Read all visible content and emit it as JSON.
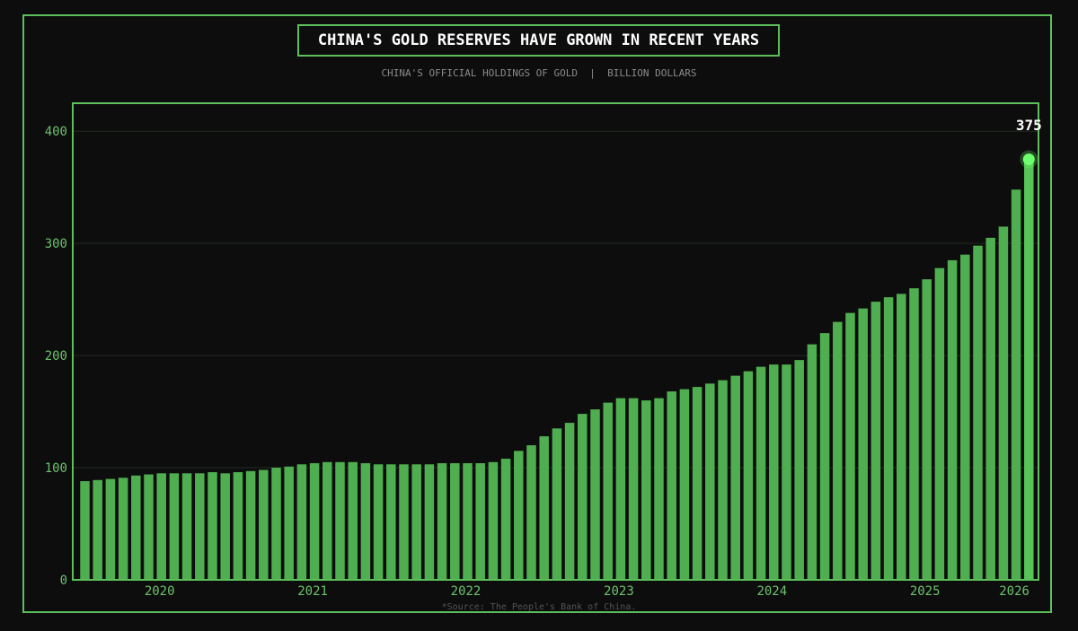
{
  "title": "CHINA'S GOLD RESERVES HAVE GROWN IN RECENT YEARS",
  "subtitle": "CHINA'S OFFICIAL HOLDINGS OF GOLD  |  BILLION DOLLARS",
  "source": "*Source: The People's Bank of China.",
  "colors": {
    "background": "#0d0d0d",
    "accent": "#5cbf5c",
    "bar": "#4fae4f",
    "highlight": "#6dff6d",
    "grid": "#1f2a1f",
    "tick_label": "#6cc26c"
  },
  "chart_data": {
    "type": "bar",
    "title": "CHINA'S GOLD RESERVES HAVE GROWN IN RECENT YEARS",
    "subtitle": "CHINA'S OFFICIAL HOLDINGS OF GOLD  |  BILLION DOLLARS",
    "ylim": [
      0,
      425
    ],
    "yticks": [
      0,
      100,
      200,
      300,
      400
    ],
    "grid": true,
    "x_tick_labels": [
      "2020",
      "2021",
      "2022",
      "2023",
      "2024",
      "2025",
      "2026"
    ],
    "x_tick_bar_index": [
      6,
      18,
      30,
      42,
      54,
      66,
      73
    ],
    "values": [
      88,
      89,
      90,
      91,
      93,
      94,
      95,
      95,
      95,
      95,
      96,
      95,
      96,
      97,
      98,
      100,
      101,
      103,
      104,
      105,
      105,
      105,
      104,
      103,
      103,
      103,
      103,
      103,
      104,
      104,
      104,
      104,
      105,
      108,
      115,
      120,
      128,
      135,
      140,
      148,
      152,
      158,
      162,
      162,
      160,
      162,
      168,
      170,
      172,
      175,
      178,
      182,
      186,
      190,
      192,
      192,
      196,
      210,
      220,
      230,
      238,
      242,
      248,
      252,
      255,
      260,
      268,
      278,
      285,
      290,
      298,
      305,
      315,
      348,
      375
    ],
    "annotation": {
      "label": "375",
      "bar_index": 74
    }
  }
}
